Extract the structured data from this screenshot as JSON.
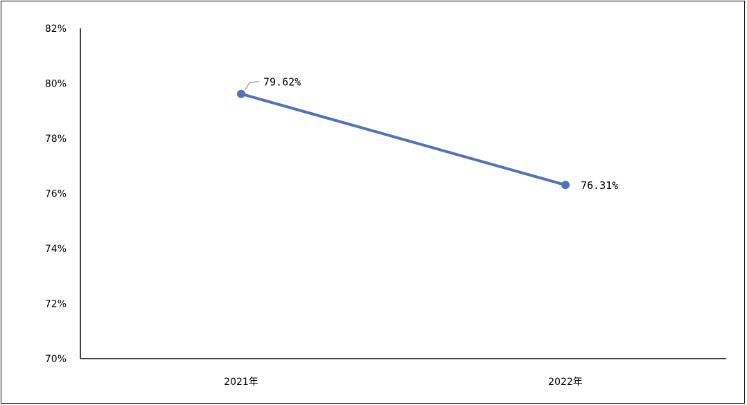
{
  "chart_data": {
    "type": "line",
    "categories": [
      "2021年",
      "2022年"
    ],
    "y_ticks": [
      "70%",
      "72%",
      "74%",
      "76%",
      "78%",
      "80%",
      "82%"
    ],
    "ylim": [
      70,
      82
    ],
    "grid": false,
    "legend": "none",
    "series": [
      {
        "values": [
          79.62,
          76.31
        ],
        "labels": [
          "79.62%",
          "76.31%"
        ],
        "color": "#4f74b8"
      }
    ],
    "axis_color": "#000000",
    "leader_line_color": "#b0a59a"
  }
}
